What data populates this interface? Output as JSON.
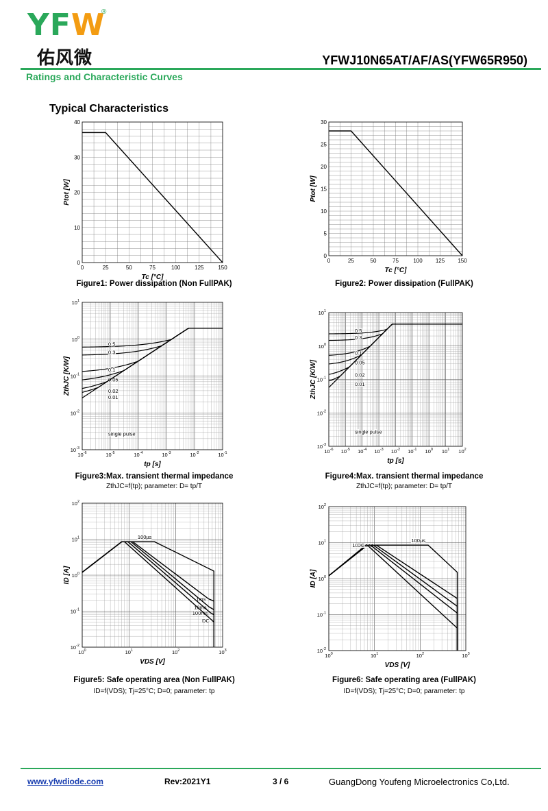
{
  "header": {
    "logo_text": "YFW",
    "logo_cn": "佑风微",
    "logo_reg": "®",
    "part_number": "YFWJ10N65AT/AF/AS(YFW65R950)",
    "section_title": "Ratings and Characteristic Curves"
  },
  "page_heading": "Typical Characteristics",
  "figures": [
    {
      "caption": "Figure1: Power dissipation (Non FullPAK)",
      "subcaption": ""
    },
    {
      "caption": "Figure2: Power dissipation (FullPAK)",
      "subcaption": ""
    },
    {
      "caption": "Figure3:Max. transient thermal impedance",
      "subcaption": "ZthJC=f(tp); parameter: D= tp/T"
    },
    {
      "caption": "Figure4:Max. transient thermal impedance",
      "subcaption": "ZthJC=f(tp); parameter: D= tp/T"
    },
    {
      "caption": "Figure5: Safe operating area (Non FullPAK)",
      "subcaption": "ID=f(VDS); Tj=25°C; D=0; parameter: tp"
    },
    {
      "caption": "Figure6: Safe operating area (FullPAK)",
      "subcaption": "ID=f(VDS); Tj=25°C; D=0; parameter: tp"
    }
  ],
  "footer": {
    "website": "www.yfwdiode.com",
    "revision": "Rev:2021Y1",
    "page": "3 / 6",
    "company": "GuangDong Youfeng Microelectronics Co,Ltd."
  },
  "chart_data": [
    {
      "type": "line",
      "xlabel": "Tc [°C]",
      "ylabel": "Ptot [W]",
      "xlim": [
        0,
        150
      ],
      "ylim": [
        0,
        40
      ],
      "xticks": [
        0,
        25,
        50,
        75,
        100,
        125,
        150
      ],
      "yticks": [
        0,
        10,
        20,
        30,
        40
      ],
      "series": [
        {
          "x": [
            0,
            25,
            150
          ],
          "y": [
            37,
            37,
            0
          ]
        }
      ]
    },
    {
      "type": "line",
      "xlabel": "Tc [°C]",
      "ylabel": "Ptot [W]",
      "xlim": [
        0,
        150
      ],
      "ylim": [
        0,
        30
      ],
      "xticks": [
        0,
        25,
        50,
        75,
        100,
        125,
        150
      ],
      "yticks": [
        0,
        5,
        10,
        15,
        20,
        25,
        30
      ],
      "series": [
        {
          "x": [
            0,
            25,
            150
          ],
          "y": [
            28,
            28,
            0
          ]
        }
      ]
    },
    {
      "type": "line",
      "log": true,
      "xlabel": "tp [s]",
      "ylabel": "ZthJC [K/W]",
      "xlim_exp": [
        -6,
        -1
      ],
      "ylim_exp": [
        -3,
        1
      ],
      "series": [
        {
          "name": "0.5",
          "rest": 0.6,
          "final": 2.0
        },
        {
          "name": "0.3",
          "rest": 0.36,
          "final": 2.0
        },
        {
          "name": "0.1",
          "rest": 0.12,
          "final": 2.0
        },
        {
          "name": "0.05",
          "rest": 0.065,
          "final": 2.0
        },
        {
          "name": "0.02",
          "rest": 0.032,
          "final": 2.0
        },
        {
          "name": "0.01",
          "rest": 0.022,
          "final": 2.0
        },
        {
          "name": "single pulse",
          "rest": 0.0,
          "final": 2.0
        }
      ]
    },
    {
      "type": "line",
      "log": true,
      "xlabel": "tp [s]",
      "ylabel": "ZthJC [K/W]",
      "xlim_exp": [
        -6,
        2
      ],
      "ylim_exp": [
        -3,
        1
      ],
      "series": [
        {
          "name": "0.5",
          "rest": 2.3,
          "final": 4.5
        },
        {
          "name": "0.3",
          "rest": 1.45,
          "final": 4.5
        },
        {
          "name": "0.1",
          "rest": 0.5,
          "final": 4.5
        },
        {
          "name": "0.05",
          "rest": 0.26,
          "final": 4.5
        },
        {
          "name": "0.02",
          "rest": 0.11,
          "final": 4.5
        },
        {
          "name": "0.01",
          "rest": 0.058,
          "final": 4.5
        },
        {
          "name": "single pulse",
          "rest": 0.0,
          "final": 4.5
        }
      ]
    },
    {
      "type": "line",
      "log": true,
      "xlabel": "VDS [V]",
      "ylabel": "ID [A]",
      "xlim_exp": [
        0,
        3
      ],
      "ylim_exp": [
        -2,
        2
      ],
      "series": [
        {
          "name": "100µs",
          "x": [
            1,
            7,
            12,
            35,
            650,
            650
          ],
          "y": [
            1.2,
            8.5,
            8.5,
            8.5,
            1.3,
            0.01
          ]
        },
        {
          "name": "1ms",
          "x": [
            1,
            7,
            12,
            500,
            650,
            650
          ],
          "y": [
            1.2,
            8.5,
            8.5,
            0.22,
            0.19,
            0.01
          ]
        },
        {
          "name": "10ms",
          "x": [
            1,
            7,
            11,
            520,
            650,
            650
          ],
          "y": [
            1.2,
            8.5,
            8.5,
            0.13,
            0.11,
            0.01
          ]
        },
        {
          "name": "100ms",
          "x": [
            1,
            7,
            9.5,
            550,
            650,
            650
          ],
          "y": [
            1.2,
            8.5,
            8.5,
            0.09,
            0.08,
            0.01
          ]
        },
        {
          "name": "DC",
          "x": [
            1,
            7,
            8,
            600,
            650,
            650
          ],
          "y": [
            1.2,
            8.5,
            8.5,
            0.055,
            0.05,
            0.01
          ]
        }
      ]
    },
    {
      "type": "line",
      "log": true,
      "xlabel": "VDS [V]",
      "ylabel": "ID [A]",
      "xlim_exp": [
        0,
        3
      ],
      "ylim_exp": [
        -2,
        2
      ],
      "series": [
        {
          "name": "100µs",
          "x": [
            1,
            7,
            14,
            150,
            650,
            650
          ],
          "y": [
            1.2,
            8.5,
            8.5,
            8.5,
            1.5,
            0.01
          ]
        },
        {
          "name": "1ms",
          "x": [
            1,
            7,
            11,
            650,
            650
          ],
          "y": [
            1.2,
            8.5,
            8.5,
            0.28,
            0.01
          ]
        },
        {
          "name": "10ms",
          "x": [
            1,
            7,
            9.5,
            650,
            650
          ],
          "y": [
            1.2,
            8.5,
            8.5,
            0.17,
            0.01
          ]
        },
        {
          "name": "100ms",
          "x": [
            1,
            7,
            8.2,
            650,
            650
          ],
          "y": [
            1.2,
            8.5,
            8.5,
            0.11,
            0.01
          ]
        },
        {
          "name": "DC",
          "x": [
            1,
            6.5,
            7,
            650,
            650
          ],
          "y": [
            1.2,
            8.5,
            8.5,
            0.042,
            0.01
          ]
        }
      ]
    }
  ]
}
